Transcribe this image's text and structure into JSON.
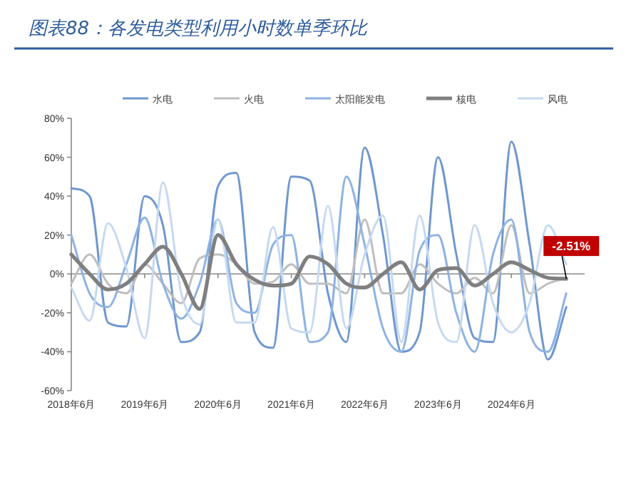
{
  "chart_data": {
    "type": "line",
    "title": "图表88：各发电类型利用小时数单季环比",
    "x": [
      "2018-06",
      "2018-09",
      "2018-12",
      "2019-03",
      "2019-06",
      "2019-09",
      "2019-12",
      "2020-03",
      "2020-06",
      "2020-09",
      "2020-12",
      "2021-03",
      "2021-06",
      "2021-09",
      "2021-12",
      "2022-03",
      "2022-06",
      "2022-09",
      "2022-12",
      "2023-03",
      "2023-06",
      "2023-09",
      "2023-12",
      "2024-03",
      "2024-06",
      "2024-09",
      "2024-12",
      "2025-03"
    ],
    "series": [
      {
        "name": "水电",
        "color": "#6f97d0",
        "values": [
          44,
          40,
          -25,
          -27,
          40,
          25,
          -35,
          -30,
          45,
          52,
          -30,
          -38,
          50,
          48,
          -10,
          -35,
          65,
          20,
          -40,
          -30,
          60,
          10,
          -33,
          -35,
          68,
          15,
          -44,
          -17
        ]
      },
      {
        "name": "火电",
        "color": "#bfbfbf",
        "values": [
          -5,
          10,
          -5,
          -10,
          5,
          -5,
          -15,
          8,
          10,
          5,
          -5,
          -4,
          5,
          -5,
          -5,
          -10,
          28,
          -10,
          -10,
          5,
          -5,
          -10,
          -2,
          -10,
          25,
          -10,
          -5,
          -2
        ]
      },
      {
        "name": "太阳能发电",
        "color": "#8db3e2",
        "values": [
          20,
          -10,
          -17,
          5,
          29,
          -5,
          -23,
          -5,
          28,
          -15,
          -20,
          15,
          20,
          -35,
          -30,
          50,
          15,
          -28,
          -40,
          12,
          20,
          -20,
          -40,
          10,
          28,
          -30,
          -40,
          -10
        ]
      },
      {
        "name": "核电",
        "color": "#7f7f7f",
        "values": [
          10,
          0,
          -8,
          -5,
          5,
          14,
          0,
          -18,
          20,
          5,
          -3,
          -6,
          -5,
          9,
          5,
          -5,
          -7,
          0,
          6,
          -8,
          2,
          3,
          -6,
          0,
          6,
          2,
          -2,
          -2.51
        ]
      },
      {
        "name": "风电",
        "color": "#c6d9f0",
        "values": [
          -7,
          -24,
          26,
          3,
          -33,
          47,
          -10,
          -26,
          28,
          -25,
          -25,
          24,
          -28,
          -30,
          35,
          -28,
          10,
          30,
          -35,
          30,
          -25,
          -35,
          25,
          -15,
          -30,
          -15,
          25,
          5
        ]
      }
    ],
    "annotations": [
      {
        "text": "-2.51%",
        "x": "2025-03",
        "y": -2.51
      }
    ],
    "xlim": [
      "2018-06",
      "2025-06"
    ],
    "xticks": [
      {
        "value": "2018-06",
        "label": "2018年6月"
      },
      {
        "value": "2019-06",
        "label": "2019年6月"
      },
      {
        "value": "2020-06",
        "label": "2020年6月"
      },
      {
        "value": "2021-06",
        "label": "2021年6月"
      },
      {
        "value": "2022-06",
        "label": "2022年6月"
      },
      {
        "value": "2023-06",
        "label": "2023年6月"
      },
      {
        "value": "2024-06",
        "label": "2024年6月"
      }
    ],
    "ylim": [
      -60,
      80
    ],
    "yticks": [
      {
        "value": -60,
        "label": "-60%"
      },
      {
        "value": -40,
        "label": "-40%"
      },
      {
        "value": -20,
        "label": "-20%"
      },
      {
        "value": 0,
        "label": "0%"
      },
      {
        "value": 20,
        "label": "20%"
      },
      {
        "value": 40,
        "label": "40%"
      },
      {
        "value": 60,
        "label": "60%"
      },
      {
        "value": 80,
        "label": "80%"
      }
    ],
    "legend": "top",
    "marker": "none",
    "line_style": "solid"
  }
}
